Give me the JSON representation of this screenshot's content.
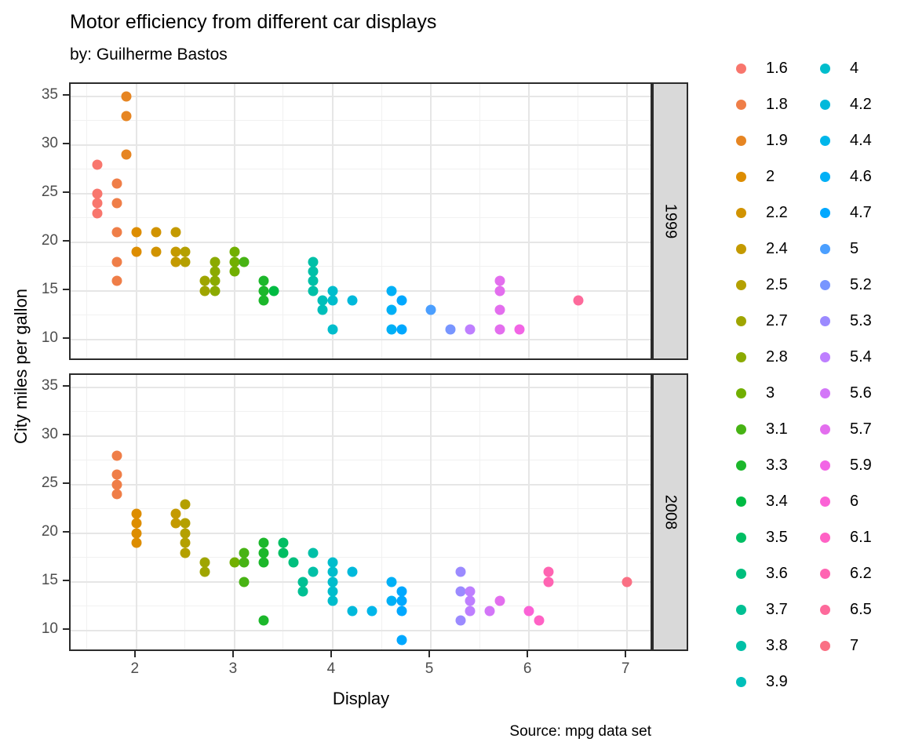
{
  "title": "Motor efficiency from different car displays",
  "subtitle": "by: Guilherme Bastos",
  "caption": "Source: mpg data set",
  "x_axis": {
    "title": "Display",
    "ticks": [
      2,
      3,
      4,
      5,
      6,
      7
    ],
    "minor": [
      1.5,
      2.5,
      3.5,
      4.5,
      5.5,
      6.5
    ]
  },
  "y_axis": {
    "title": "City miles per gallon",
    "ticks": [
      10,
      15,
      20,
      25,
      30,
      35
    ],
    "minor": [
      12.5,
      17.5,
      22.5,
      27.5,
      32.5
    ]
  },
  "legend": {
    "position": "right",
    "columns": 2,
    "col1_count": 18,
    "values": [
      "1.6",
      "1.8",
      "1.9",
      "2",
      "2.2",
      "2.4",
      "2.5",
      "2.7",
      "2.8",
      "3",
      "3.1",
      "3.3",
      "3.4",
      "3.5",
      "3.6",
      "3.7",
      "3.8",
      "3.9",
      "4",
      "4.2",
      "4.4",
      "4.6",
      "4.7",
      "5",
      "5.2",
      "5.3",
      "5.4",
      "5.6",
      "5.7",
      "5.9",
      "6",
      "6.1",
      "6.2",
      "6.5",
      "7"
    ]
  },
  "palette": {
    "1.6": "#F8766D",
    "1.8": "#EF7E48",
    "1.9": "#E68522",
    "2": "#DD8D00",
    "2.2": "#D19300",
    "2.4": "#C49A00",
    "2.5": "#B4A000",
    "2.7": "#9FA500",
    "2.8": "#8BAA00",
    "3": "#71AF00",
    "3.1": "#47B314",
    "3.3": "#1CB72B",
    "3.4": "#00BB43",
    "3.5": "#00BE63",
    "3.6": "#00BF7D",
    "3.7": "#00C093",
    "3.8": "#00C0A7",
    "3.9": "#00BFBA",
    "4": "#00BDCC",
    "4.2": "#00B9DB",
    "4.4": "#00B6EA",
    "4.6": "#00B0F6",
    "4.7": "#00A8FF",
    "5": "#4B9FFF",
    "5.2": "#7895FF",
    "5.3": "#9B8AFF",
    "5.4": "#BE7FFF",
    "5.6": "#D376F8",
    "5.7": "#E36EEE",
    "5.9": "#F265E5",
    "6": "#FB62D6",
    "6.1": "#FF62C5",
    "6.2": "#FF64B2",
    "6.5": "#FD6A9B",
    "7": "#FA7084"
  },
  "theme": {
    "panel_border": "#2b2b2b",
    "strip_fill": "#d9d9d9",
    "grid_major": "#e6e6e6",
    "grid_minor": "#f1f1f1",
    "tick_label_color": "#4d4d4d",
    "text_color": "#000000"
  },
  "chart_data": {
    "type": "scatter",
    "title": "Motor efficiency from different car displays",
    "subtitle": "by: Guilherme Bastos",
    "caption": "Source: mpg data set",
    "xlabel": "Display",
    "ylabel": "City miles per gallon",
    "xlim": [
      1.33,
      7.27
    ],
    "ylim": [
      7.7,
      36.3
    ],
    "grid": true,
    "legend_position": "right",
    "color_by": "engine displacement (litres)",
    "facet_by": "year",
    "facets": [
      {
        "label": "1999",
        "points": [
          [
            1.6,
            28
          ],
          [
            1.6,
            25
          ],
          [
            1.6,
            24
          ],
          [
            1.6,
            23
          ],
          [
            1.8,
            26
          ],
          [
            1.8,
            24
          ],
          [
            1.8,
            21
          ],
          [
            1.8,
            18
          ],
          [
            1.8,
            16
          ],
          [
            1.9,
            35
          ],
          [
            1.9,
            33
          ],
          [
            1.9,
            29
          ],
          [
            2,
            21
          ],
          [
            2,
            19
          ],
          [
            2.2,
            21
          ],
          [
            2.2,
            19
          ],
          [
            2.4,
            21
          ],
          [
            2.4,
            19
          ],
          [
            2.4,
            18
          ],
          [
            2.5,
            19
          ],
          [
            2.5,
            18
          ],
          [
            2.7,
            16
          ],
          [
            2.7,
            15
          ],
          [
            2.8,
            18
          ],
          [
            2.8,
            17
          ],
          [
            2.8,
            16
          ],
          [
            2.8,
            15
          ],
          [
            3,
            19
          ],
          [
            3,
            18
          ],
          [
            3,
            17
          ],
          [
            3.1,
            18
          ],
          [
            3.3,
            16
          ],
          [
            3.3,
            15
          ],
          [
            3.3,
            14
          ],
          [
            3.4,
            15
          ],
          [
            3.8,
            18
          ],
          [
            3.8,
            17
          ],
          [
            3.8,
            16
          ],
          [
            3.8,
            15
          ],
          [
            3.9,
            14
          ],
          [
            3.9,
            13
          ],
          [
            4,
            15
          ],
          [
            4,
            14
          ],
          [
            4,
            11
          ],
          [
            4.2,
            14
          ],
          [
            4.6,
            15
          ],
          [
            4.6,
            13
          ],
          [
            4.6,
            11
          ],
          [
            4.7,
            14
          ],
          [
            4.7,
            11
          ],
          [
            5,
            13
          ],
          [
            5.2,
            11
          ],
          [
            5.4,
            11
          ],
          [
            5.7,
            16
          ],
          [
            5.7,
            15
          ],
          [
            5.7,
            13
          ],
          [
            5.7,
            11
          ],
          [
            5.9,
            11
          ],
          [
            6.5,
            14
          ]
        ]
      },
      {
        "label": "2008",
        "points": [
          [
            1.8,
            28
          ],
          [
            1.8,
            26
          ],
          [
            1.8,
            25
          ],
          [
            1.8,
            24
          ],
          [
            2,
            22
          ],
          [
            2,
            21
          ],
          [
            2,
            20
          ],
          [
            2,
            19
          ],
          [
            2.4,
            22
          ],
          [
            2.4,
            21
          ],
          [
            2.5,
            23
          ],
          [
            2.5,
            21
          ],
          [
            2.5,
            20
          ],
          [
            2.5,
            19
          ],
          [
            2.5,
            18
          ],
          [
            2.7,
            17
          ],
          [
            2.7,
            16
          ],
          [
            3,
            17
          ],
          [
            3.1,
            18
          ],
          [
            3.1,
            17
          ],
          [
            3.1,
            15
          ],
          [
            3.3,
            19
          ],
          [
            3.3,
            18
          ],
          [
            3.3,
            17
          ],
          [
            3.3,
            11
          ],
          [
            3.5,
            19
          ],
          [
            3.5,
            18
          ],
          [
            3.6,
            17
          ],
          [
            3.7,
            15
          ],
          [
            3.7,
            14
          ],
          [
            3.8,
            18
          ],
          [
            3.8,
            16
          ],
          [
            4,
            17
          ],
          [
            4,
            16
          ],
          [
            4,
            15
          ],
          [
            4,
            14
          ],
          [
            4,
            13
          ],
          [
            4.2,
            16
          ],
          [
            4.2,
            12
          ],
          [
            4.4,
            12
          ],
          [
            4.6,
            15
          ],
          [
            4.6,
            13
          ],
          [
            4.7,
            14
          ],
          [
            4.7,
            13
          ],
          [
            4.7,
            12
          ],
          [
            4.7,
            9
          ],
          [
            5.3,
            16
          ],
          [
            5.3,
            14
          ],
          [
            5.3,
            11
          ],
          [
            5.4,
            14
          ],
          [
            5.4,
            13
          ],
          [
            5.4,
            12
          ],
          [
            5.6,
            12
          ],
          [
            5.7,
            13
          ],
          [
            6,
            12
          ],
          [
            6.1,
            11
          ],
          [
            6.2,
            16
          ],
          [
            6.2,
            15
          ],
          [
            7,
            15
          ]
        ]
      }
    ]
  }
}
